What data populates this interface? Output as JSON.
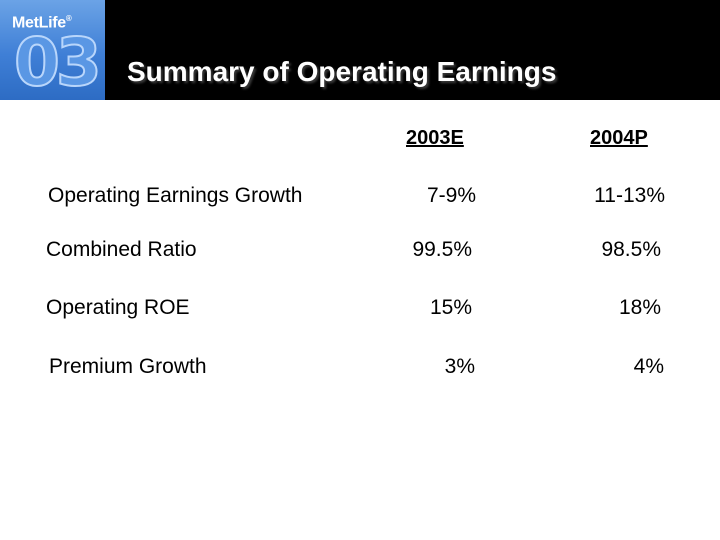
{
  "brand": {
    "name": "MetLife",
    "mark": "®",
    "year_badge": "03"
  },
  "title": "Summary of Operating Earnings",
  "columns": [
    "2003E",
    "2004P"
  ],
  "rows": [
    {
      "label": "Operating Earnings Growth",
      "values": [
        "7-9%",
        "11-13%"
      ]
    },
    {
      "label": "Combined Ratio",
      "values": [
        "99.5%",
        "98.5%"
      ]
    },
    {
      "label": "Operating ROE",
      "values": [
        "15%",
        "18%"
      ]
    },
    {
      "label": "Premium Growth",
      "values": [
        "3%",
        "4%"
      ]
    }
  ]
}
